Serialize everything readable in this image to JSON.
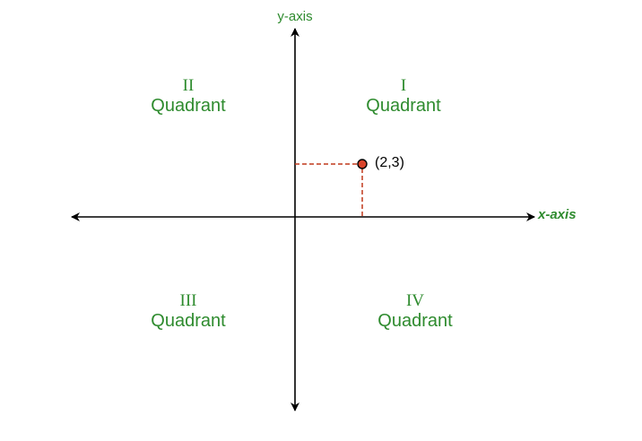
{
  "colors": {
    "label_green": "#2e8b2e",
    "axis": "#000000",
    "guide": "#c0391b",
    "point_fill": "#d9442b",
    "point_stroke": "#000000"
  },
  "axes": {
    "x_label": "x-axis",
    "y_label": "y-axis"
  },
  "quadrants": [
    {
      "numeral": "I",
      "word": "Quadrant"
    },
    {
      "numeral": "II",
      "word": "Quadrant"
    },
    {
      "numeral": "III",
      "word": "Quadrant"
    },
    {
      "numeral": "IV",
      "word": "Quadrant"
    }
  ],
  "point": {
    "label": "(2,3)",
    "x": 2,
    "y": 3
  }
}
